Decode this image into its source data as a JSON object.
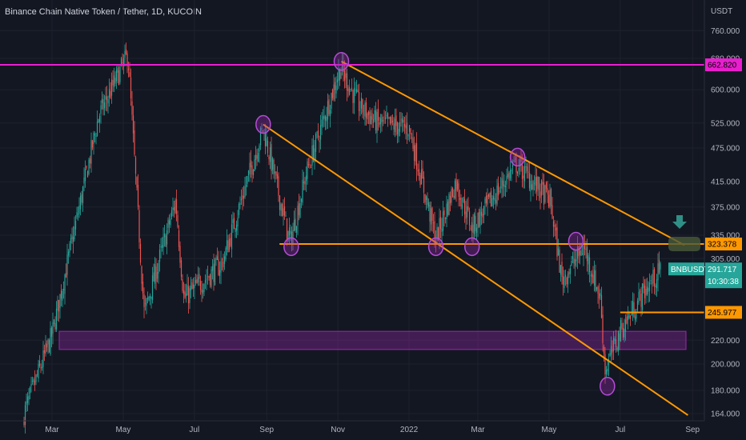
{
  "header": {
    "title": "Binance Chain Native Token / Tether, 1D, KUCOIN",
    "currency": "USDT"
  },
  "chart_data": {
    "type": "candlestick",
    "y_scale": "log",
    "ylim": [
      160,
      800
    ],
    "x_tick_labels": [
      "Mar",
      "May",
      "Jul",
      "Sep",
      "Nov",
      "2022",
      "Mar",
      "May",
      "Jul",
      "Sep"
    ],
    "y_tick_labels": [
      {
        "label": "760.000",
        "value": 760
      },
      {
        "label": "680.000",
        "value": 680
      },
      {
        "label": "600.000",
        "value": 600
      },
      {
        "label": "525.000",
        "value": 525
      },
      {
        "label": "475.000",
        "value": 475
      },
      {
        "label": "415.000",
        "value": 415
      },
      {
        "label": "375.000",
        "value": 375
      },
      {
        "label": "335.000",
        "value": 335
      },
      {
        "label": "305.000",
        "value": 305
      },
      {
        "label": "220.000",
        "value": 220
      },
      {
        "label": "200.000",
        "value": 200
      },
      {
        "label": "180.000",
        "value": 180
      },
      {
        "label": "164.000",
        "value": 164
      }
    ],
    "price_tags": [
      {
        "label": "662.820",
        "value": 662.82,
        "color": "#e91ecf"
      },
      {
        "label": "323.378",
        "value": 323.378,
        "color": "#ff9800"
      },
      {
        "label": "245.977",
        "value": 245.977,
        "color": "#ff9800"
      }
    ],
    "symbol_tag": {
      "symbol": "BNBUSDT",
      "price": "291.717",
      "countdown": "10:30:38",
      "color": "#26a69a"
    },
    "support_zone": {
      "low": 212,
      "high": 228,
      "color": "#9c27b0"
    },
    "anchor_points": [
      {
        "date": "2021-02-05",
        "price": 164
      },
      {
        "date": "2021-03-01",
        "price": 225
      },
      {
        "date": "2021-04-10",
        "price": 540
      },
      {
        "date": "2021-05-05",
        "price": 690
      },
      {
        "date": "2021-05-19",
        "price": 245
      },
      {
        "date": "2021-06-15",
        "price": 385
      },
      {
        "date": "2021-06-22",
        "price": 260
      },
      {
        "date": "2021-07-25",
        "price": 300
      },
      {
        "date": "2021-08-29",
        "price": 515
      },
      {
        "date": "2021-09-21",
        "price": 325
      },
      {
        "date": "2021-10-05",
        "price": 430
      },
      {
        "date": "2021-11-03",
        "price": 655
      },
      {
        "date": "2021-11-20",
        "price": 560
      },
      {
        "date": "2021-12-05",
        "price": 525
      },
      {
        "date": "2022-01-01",
        "price": 515
      },
      {
        "date": "2022-01-24",
        "price": 330
      },
      {
        "date": "2022-02-10",
        "price": 415
      },
      {
        "date": "2022-02-24",
        "price": 345
      },
      {
        "date": "2022-04-03",
        "price": 445
      },
      {
        "date": "2022-05-02",
        "price": 385
      },
      {
        "date": "2022-05-12",
        "price": 280
      },
      {
        "date": "2022-05-31",
        "price": 320
      },
      {
        "date": "2022-06-14",
        "price": 260
      },
      {
        "date": "2022-06-18",
        "price": 195
      },
      {
        "date": "2022-07-01",
        "price": 228
      },
      {
        "date": "2022-07-20",
        "price": 265
      },
      {
        "date": "2022-08-05",
        "price": 292
      }
    ],
    "trendlines": [
      {
        "from": {
          "date": "2021-11-04",
          "price": 672
        },
        "to": {
          "date": "2022-08-25",
          "price": 322
        },
        "color": "#ff9800"
      },
      {
        "from": {
          "date": "2021-08-29",
          "price": 522
        },
        "to": {
          "date": "2022-08-28",
          "price": 163
        },
        "color": "#ff9800"
      },
      {
        "from": {
          "date": "2021-09-12",
          "price": 323.378
        },
        "to": {
          "date": "2022-09-15",
          "price": 323.378
        },
        "color": "#ff9800"
      },
      {
        "from": {
          "date": "2022-07-01",
          "price": 245.977
        },
        "to": {
          "date": "2022-09-15",
          "price": 245.977
        },
        "color": "#ff9800"
      },
      {
        "from": {
          "date": "2021-01-01",
          "price": 662.82
        },
        "to": {
          "date": "2022-09-15",
          "price": 662.82
        },
        "color": "#e91ecf"
      }
    ],
    "circled_points": [
      {
        "date": "2021-08-29",
        "price": 522
      },
      {
        "date": "2021-09-22",
        "price": 320
      },
      {
        "date": "2021-11-04",
        "price": 672
      },
      {
        "date": "2022-01-24",
        "price": 320
      },
      {
        "date": "2022-02-24",
        "price": 320
      },
      {
        "date": "2022-04-04",
        "price": 458
      },
      {
        "date": "2022-05-24",
        "price": 327
      },
      {
        "date": "2022-06-20",
        "price": 183
      }
    ],
    "target_marker": {
      "date": "2022-08-25",
      "price": 323.378
    }
  }
}
